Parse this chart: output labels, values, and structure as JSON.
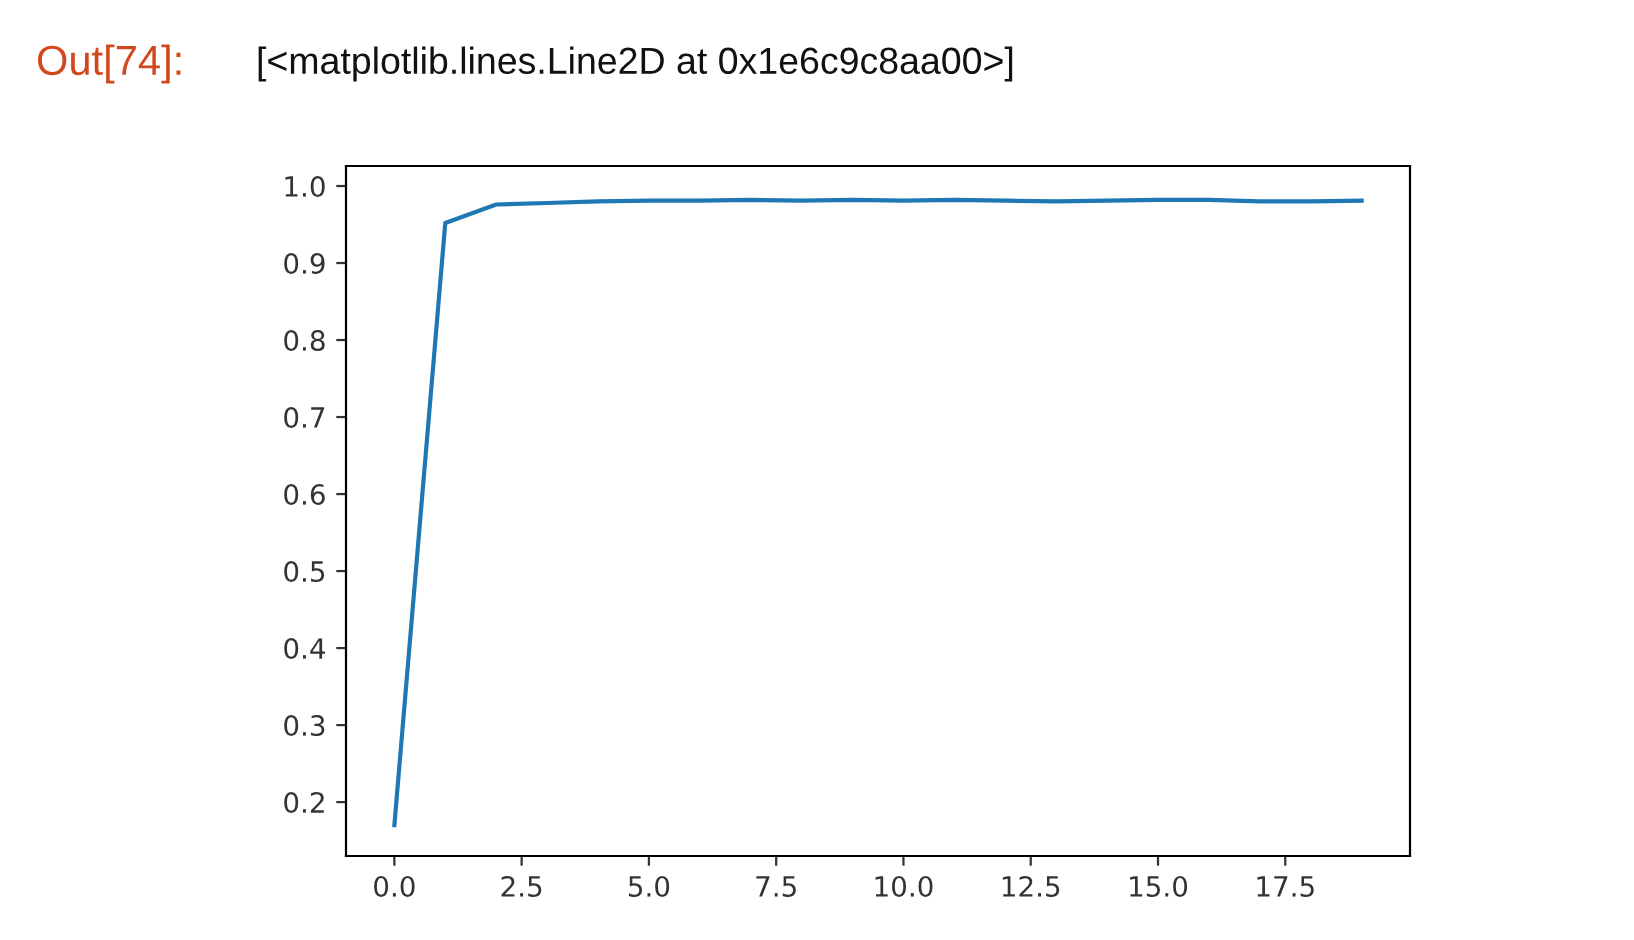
{
  "chart_data": {
    "type": "line",
    "x": [
      0,
      1,
      2,
      3,
      4,
      5,
      6,
      7,
      8,
      9,
      10,
      11,
      12,
      13,
      14,
      15,
      16,
      17,
      18,
      19
    ],
    "series": [
      {
        "color": "#1f77b4",
        "values": [
          0.17,
          0.952,
          0.976,
          0.978,
          0.98,
          0.981,
          0.981,
          0.982,
          0.981,
          0.982,
          0.981,
          0.982,
          0.981,
          0.98,
          0.981,
          0.982,
          0.982,
          0.98,
          0.98,
          0.981
        ]
      }
    ],
    "xlim": [
      -0.95,
      19.95
    ],
    "ylim": [
      0.13,
      1.026
    ],
    "xticks": [
      {
        "value": 0,
        "label": "0.0"
      },
      {
        "value": 2.5,
        "label": "2.5"
      },
      {
        "value": 5,
        "label": "5.0"
      },
      {
        "value": 7.5,
        "label": "7.5"
      },
      {
        "value": 10,
        "label": "10.0"
      },
      {
        "value": 12.5,
        "label": "12.5"
      },
      {
        "value": 15,
        "label": "15.0"
      },
      {
        "value": 17.5,
        "label": "17.5"
      }
    ],
    "yticks": [
      0.2,
      0.3,
      0.4,
      0.5,
      0.6,
      0.7,
      0.8,
      0.9,
      {
        "value": 1.0,
        "label": "1.0"
      }
    ],
    "grid": false,
    "annotations": [
      "Out[74]:",
      "[<matplotlib.lines.Line2D at 0x1e6c9c8aa00>]"
    ]
  }
}
